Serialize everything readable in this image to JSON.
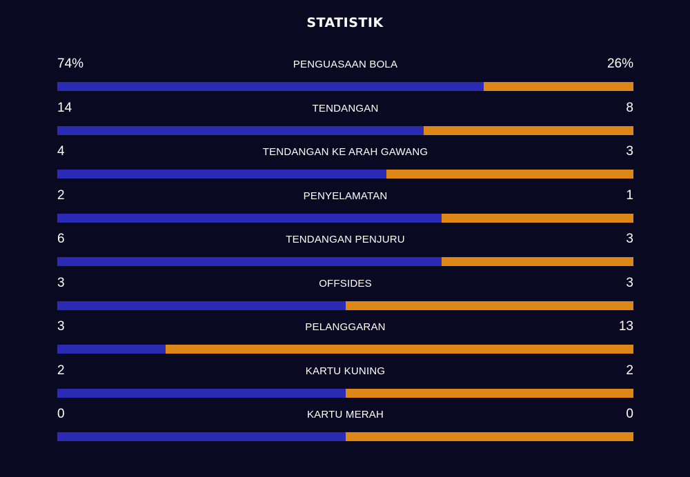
{
  "title": "STATISTIK",
  "colors": {
    "background": "#090922",
    "home": "#2a2ab4",
    "away": "#dd8716",
    "text": "#ffffff"
  },
  "stats": [
    {
      "label": "PENGUASAAN BOLA",
      "home": "74%",
      "away": "26%",
      "home_share": 0.74
    },
    {
      "label": "TENDANGAN",
      "home": "14",
      "away": "8",
      "home_share": 0.6364
    },
    {
      "label": "TENDANGAN KE ARAH GAWANG",
      "home": "4",
      "away": "3",
      "home_share": 0.5714
    },
    {
      "label": "PENYELAMATAN",
      "home": "2",
      "away": "1",
      "home_share": 0.6667
    },
    {
      "label": "TENDANGAN PENJURU",
      "home": "6",
      "away": "3",
      "home_share": 0.6667
    },
    {
      "label": "OFFSIDES",
      "home": "3",
      "away": "3",
      "home_share": 0.5
    },
    {
      "label": "PELANGGARAN",
      "home": "3",
      "away": "13",
      "home_share": 0.1875
    },
    {
      "label": "KARTU KUNING",
      "home": "2",
      "away": "2",
      "home_share": 0.5
    },
    {
      "label": "KARTU MERAH",
      "home": "0",
      "away": "0",
      "home_share": 0.5
    }
  ]
}
